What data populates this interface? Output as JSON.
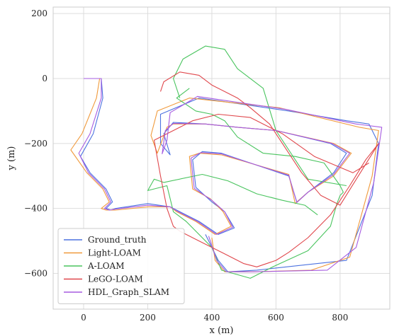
{
  "chart_data": {
    "type": "line",
    "xlabel": "x (m)",
    "ylabel": "y (m)",
    "xlim": [
      -95,
      955
    ],
    "ylim": [
      -710,
      220
    ],
    "xticks": [
      0,
      200,
      400,
      600,
      800
    ],
    "yticks": [
      -600,
      -400,
      -200,
      0,
      200
    ],
    "xtick_labels": [
      "0",
      "200",
      "400",
      "600",
      "800"
    ],
    "ytick_labels": [
      "−600",
      "−400",
      "−200",
      "0",
      "200"
    ],
    "grid": true,
    "legend_position": "lower-left",
    "series": [
      {
        "name": "Ground_truth",
        "color": "#4c72e0",
        "x": [
          0,
          55,
          60,
          30,
          -10,
          20,
          70,
          90,
          70,
          85,
          100,
          200,
          270,
          300,
          360,
          420,
          470,
          440,
          400,
          350,
          340,
          370,
          430,
          640,
          665,
          700,
          780,
          820,
          770,
          600,
          480,
          380,
          280,
          250,
          270,
          240,
          240,
          360,
          640,
          820,
          890,
          920,
          900,
          820,
          540,
          450,
          420,
          380
        ],
        "y": [
          0,
          0,
          -60,
          -170,
          -240,
          -290,
          -340,
          -380,
          -400,
          -405,
          -400,
          -385,
          -395,
          -410,
          -440,
          -480,
          -460,
          -410,
          -380,
          -335,
          -250,
          -225,
          -230,
          -300,
          -380,
          -350,
          -290,
          -230,
          -200,
          -160,
          -150,
          -140,
          -135,
          -170,
          -235,
          -200,
          -110,
          -60,
          -100,
          -130,
          -140,
          -200,
          -360,
          -560,
          -590,
          -595,
          -560,
          -480
        ]
      },
      {
        "name": "Light-LOAM",
        "color": "#f09a3c",
        "x": [
          0,
          50,
          40,
          -5,
          -40,
          10,
          60,
          80,
          55,
          70,
          100,
          200,
          270,
          290,
          350,
          410,
          460,
          435,
          395,
          340,
          330,
          360,
          430,
          640,
          660,
          700,
          780,
          835,
          780,
          600,
          480,
          380,
          280,
          260,
          230,
          210,
          230,
          330,
          610,
          860,
          920,
          900,
          830,
          710,
          530,
          440,
          410,
          400
        ],
        "y": [
          0,
          0,
          -60,
          -170,
          -220,
          -290,
          -340,
          -380,
          -400,
          -405,
          -405,
          -395,
          -395,
          -410,
          -440,
          -480,
          -455,
          -410,
          -370,
          -340,
          -240,
          -230,
          -235,
          -295,
          -385,
          -350,
          -300,
          -230,
          -200,
          -160,
          -150,
          -140,
          -140,
          -150,
          -230,
          -175,
          -100,
          -60,
          -90,
          -150,
          -160,
          -300,
          -550,
          -590,
          -595,
          -595,
          -560,
          -490
        ]
      },
      {
        "name": "A-LOAM",
        "color": "#49c45e",
        "x": [
          330,
          290,
          350,
          400,
          440,
          480,
          560,
          660,
          750,
          800,
          810,
          800,
          790,
          770,
          700,
          590,
          520,
          430,
          400,
          320,
          280,
          260,
          200,
          220,
          250,
          370,
          450,
          540,
          620,
          690,
          730
        ],
        "y": [
          -30,
          -60,
          -100,
          -110,
          -130,
          -180,
          -230,
          -240,
          -260,
          -330,
          -350,
          -360,
          -385,
          -455,
          -530,
          -580,
          -615,
          -590,
          -520,
          -440,
          -410,
          -330,
          -345,
          -310,
          -320,
          -295,
          -315,
          -355,
          -375,
          -390,
          -420
        ],
        "x2": [
          300,
          280,
          310,
          380,
          440,
          480,
          560,
          600,
          700,
          820
        ],
        "y2": [
          -60,
          0,
          60,
          100,
          90,
          30,
          -30,
          -160,
          -310,
          -330
        ]
      },
      {
        "name": "LeGO-LOAM",
        "color": "#e0474c",
        "x": [
          240,
          250,
          300,
          360,
          400,
          480,
          520,
          580,
          640,
          680,
          740,
          800,
          920,
          880,
          830,
          770,
          700,
          640,
          600,
          540,
          500,
          440,
          360,
          300,
          280,
          260,
          240,
          220,
          340,
          420,
          520,
          620,
          720,
          840,
          890
        ],
        "y": [
          -40,
          -10,
          20,
          10,
          -20,
          -60,
          -90,
          -140,
          -230,
          -290,
          -360,
          -390,
          -200,
          -250,
          -330,
          -420,
          -490,
          -535,
          -560,
          -580,
          -570,
          -540,
          -500,
          -470,
          -455,
          -400,
          -300,
          -190,
          -130,
          -110,
          -120,
          -170,
          -240,
          -290,
          -260
        ]
      },
      {
        "name": "HDL_Graph_SLAM",
        "color": "#a65be0",
        "x": [
          0,
          55,
          55,
          20,
          -15,
          15,
          65,
          85,
          65,
          80,
          100,
          200,
          270,
          295,
          355,
          415,
          465,
          440,
          400,
          345,
          335,
          365,
          430,
          640,
          665,
          700,
          780,
          830,
          775,
          600,
          480,
          380,
          280,
          255,
          245,
          260,
          270,
          355,
          630,
          850,
          930,
          905,
          850,
          760,
          530,
          445,
          415,
          390
        ],
        "y": [
          0,
          0,
          -60,
          -170,
          -230,
          -290,
          -340,
          -380,
          -400,
          -405,
          -402,
          -390,
          -395,
          -410,
          -440,
          -480,
          -458,
          -410,
          -375,
          -338,
          -245,
          -228,
          -232,
          -298,
          -382,
          -350,
          -295,
          -230,
          -200,
          -160,
          -150,
          -140,
          -138,
          -160,
          -232,
          -190,
          -105,
          -55,
          -95,
          -140,
          -150,
          -320,
          -520,
          -590,
          -595,
          -595,
          -560,
          -485
        ]
      }
    ]
  }
}
